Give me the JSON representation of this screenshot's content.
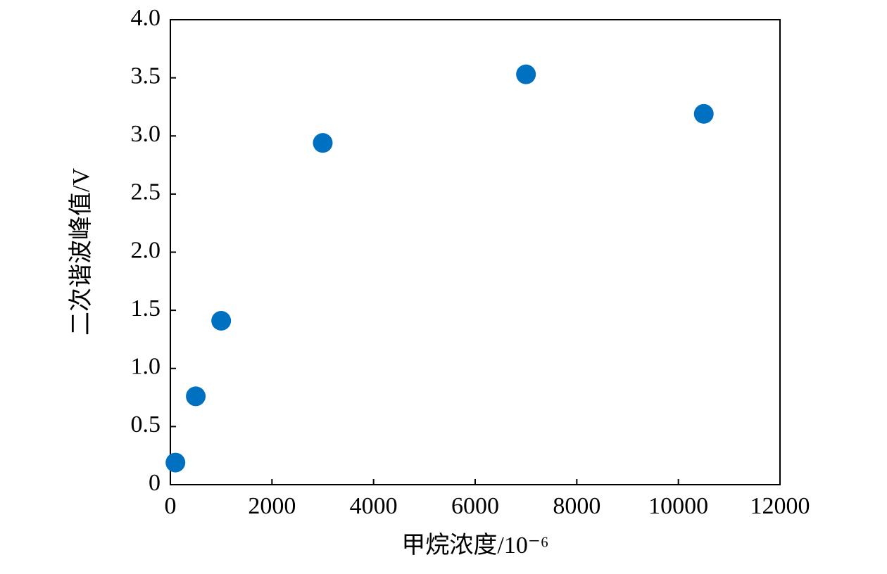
{
  "chart_data": {
    "type": "scatter",
    "x_label": "甲烷浓度/10⁻⁶",
    "y_label": "二次谐波峰值/V",
    "series": [
      {
        "color": "#0070c0",
        "x": [
          100,
          500,
          1000,
          3000,
          7000,
          10500
        ],
        "values": [
          0.19,
          0.76,
          1.41,
          2.94,
          3.53,
          3.19
        ]
      }
    ],
    "xlim": [
      0,
      12000
    ],
    "xticks": [
      0,
      2000,
      4000,
      6000,
      8000,
      10000,
      12000
    ],
    "ylim": [
      0,
      4
    ],
    "yticks": [
      0,
      0.5,
      {
        "value": 1,
        "label": "1.0"
      },
      1.5,
      {
        "value": 2,
        "label": "2.0"
      },
      2.5,
      {
        "value": 3,
        "label": "3.0"
      },
      3.5,
      {
        "value": 4,
        "label": "4.0"
      }
    ],
    "grid": false
  }
}
